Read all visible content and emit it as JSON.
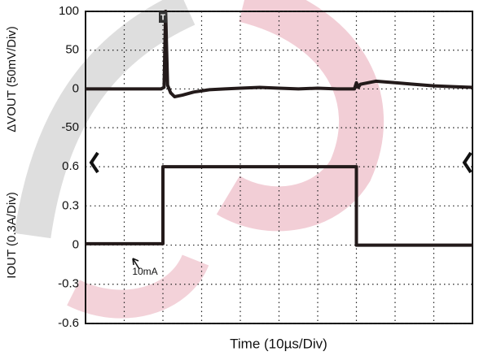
{
  "chart_data": [
    {
      "type": "line",
      "ylabel": "ΔVOUT (50mV/Div)",
      "ylim": [
        -75,
        100
      ],
      "yticks": [
        100,
        50,
        0,
        -50
      ],
      "trigger": "T",
      "color": "#231a1a",
      "x": [
        0,
        5,
        10,
        15,
        19.5,
        20.3,
        20.7,
        21.2,
        22,
        23,
        25,
        28,
        32,
        36,
        40,
        45,
        50,
        55,
        60,
        65,
        69.5,
        70,
        70.5,
        71,
        73,
        75,
        80,
        85,
        90,
        95,
        100
      ],
      "values": [
        0,
        0,
        0,
        0,
        0,
        2,
        100,
        5,
        -5,
        -10,
        -8,
        -4,
        -1,
        0,
        1,
        2,
        1,
        0,
        1,
        0,
        0,
        8,
        2,
        6,
        8,
        10,
        8,
        6,
        4,
        3,
        2
      ]
    },
    {
      "type": "line",
      "ylabel": "IOUT (0.3A/Div)",
      "xlabel": "Time (10µs/Div)",
      "ylim": [
        -0.6,
        0.75
      ],
      "yticks": [
        0.6,
        0.3,
        0,
        -0.3,
        -0.6
      ],
      "annotation": "10mA",
      "color": "#231a1a",
      "x": [
        0,
        20,
        20,
        70,
        70,
        100
      ],
      "values": [
        0.01,
        0.01,
        0.6,
        0.6,
        0,
        0
      ]
    }
  ]
}
